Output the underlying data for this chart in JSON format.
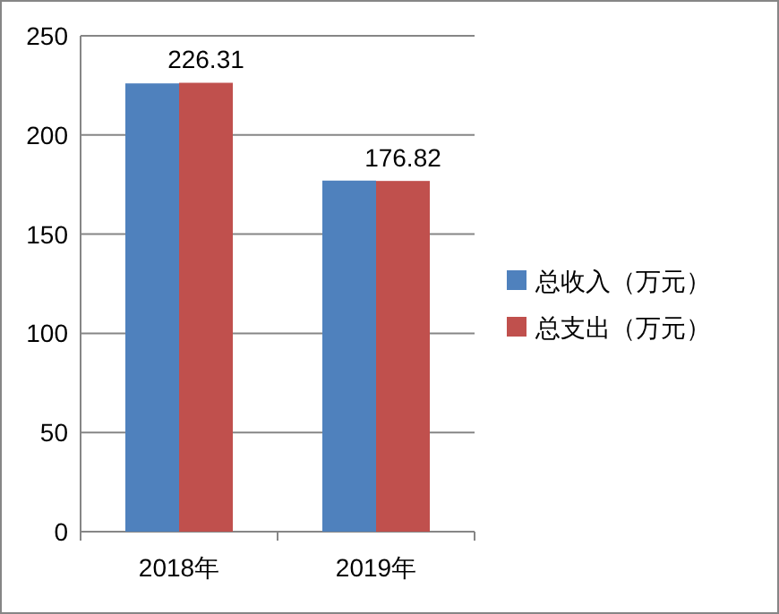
{
  "chart_data": {
    "type": "bar",
    "categories": [
      "2018年",
      "2019年"
    ],
    "series": [
      {
        "name": "总收入（万元）",
        "color": "#4f81bd",
        "values": [
          226,
          177
        ],
        "value_labels": [
          null,
          null
        ]
      },
      {
        "name": "总支出（万元）",
        "color": "#c0504d",
        "values": [
          226.31,
          176.82
        ],
        "value_labels": [
          "226.31",
          "176.82"
        ]
      }
    ],
    "ylim": [
      0,
      250
    ],
    "yticks": [
      0,
      50,
      100,
      150,
      200,
      250
    ],
    "grid": "y",
    "legend": "right"
  }
}
